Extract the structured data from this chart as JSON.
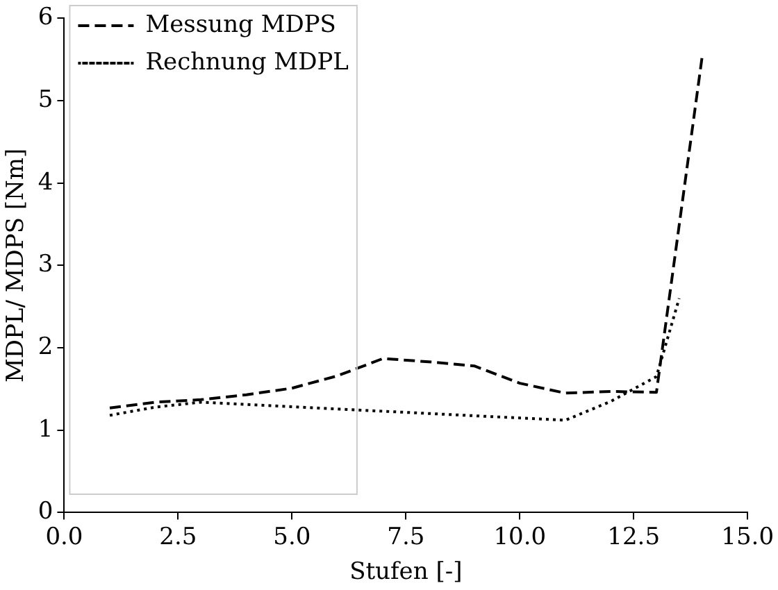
{
  "chart_data": {
    "type": "line",
    "xlabel": "Stufen [-]",
    "ylabel": "MDPL/ MDPS [Nm]",
    "xlim": [
      0,
      15
    ],
    "xticks": [
      {
        "value": 0,
        "label": "0.0"
      },
      {
        "value": 2.5,
        "label": "2.5"
      },
      {
        "value": 5,
        "label": "5.0"
      },
      {
        "value": 7.5,
        "label": "7.5"
      },
      {
        "value": 10,
        "label": "10.0"
      },
      {
        "value": 12.5,
        "label": "12.5"
      },
      {
        "value": 15,
        "label": "15.0"
      }
    ],
    "ylim": [
      0,
      6
    ],
    "yticks": [
      0,
      1,
      2,
      3,
      4,
      5,
      6
    ],
    "grid": false,
    "legend": "top left",
    "marker": "none",
    "series": [
      {
        "name": "Messung MDPS",
        "color": "#000000",
        "line_style": "dashed",
        "x": [
          1,
          2,
          3,
          4,
          5,
          6,
          7,
          8,
          9,
          10,
          11,
          12,
          13,
          14
        ],
        "values": [
          1.27,
          1.34,
          1.37,
          1.43,
          1.51,
          1.66,
          1.87,
          1.83,
          1.78,
          1.57,
          1.45,
          1.47,
          1.46,
          5.52
        ]
      },
      {
        "name": "Rechnung MDPL",
        "color": "#000000",
        "line_style": "dotted",
        "x": [
          1,
          2,
          3,
          11,
          12,
          13,
          13.5
        ],
        "values": [
          1.18,
          1.28,
          1.34,
          1.12,
          1.35,
          1.65,
          2.6
        ]
      }
    ]
  }
}
